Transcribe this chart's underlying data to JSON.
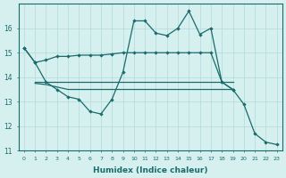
{
  "xlabel": "Humidex (Indice chaleur)",
  "bg_color": "#d6f0f0",
  "grid_color": "#b8dcdc",
  "line_color": "#1a6b6b",
  "xlim": [
    -0.5,
    23.5
  ],
  "ylim": [
    11,
    17
  ],
  "yticks": [
    11,
    12,
    13,
    14,
    15,
    16
  ],
  "xticks": [
    0,
    1,
    2,
    3,
    4,
    5,
    6,
    7,
    8,
    9,
    10,
    11,
    12,
    13,
    14,
    15,
    16,
    17,
    18,
    19,
    20,
    21,
    22,
    23
  ],
  "series": [
    {
      "x": [
        0,
        1,
        2,
        3,
        4,
        5,
        6,
        7,
        8,
        9,
        10,
        11,
        12,
        13,
        14,
        15,
        16,
        17,
        18,
        19,
        20,
        21,
        22,
        23
      ],
      "y": [
        15.2,
        14.6,
        13.8,
        13.5,
        13.2,
        13.1,
        12.6,
        12.5,
        13.1,
        14.2,
        16.3,
        16.3,
        15.8,
        15.7,
        16.0,
        16.7,
        15.75,
        16.0,
        13.8,
        13.5,
        12.9,
        11.7,
        11.35,
        11.25
      ],
      "markers": true
    },
    {
      "x": [
        1,
        2,
        3,
        4,
        5,
        6,
        7,
        8,
        9,
        10,
        11,
        12,
        13,
        14,
        15,
        16,
        17,
        18,
        19
      ],
      "y": [
        13.8,
        13.8,
        13.8,
        13.8,
        13.8,
        13.8,
        13.8,
        13.8,
        13.8,
        13.8,
        13.8,
        13.8,
        13.8,
        13.8,
        13.8,
        13.8,
        13.8,
        13.8,
        13.8
      ],
      "markers": false
    },
    {
      "x": [
        1,
        2,
        3,
        4,
        5,
        6,
        7,
        8,
        9,
        10,
        11,
        12,
        13,
        14,
        15,
        16,
        17,
        18,
        19
      ],
      "y": [
        13.75,
        13.7,
        13.6,
        13.5,
        13.5,
        13.5,
        13.5,
        13.5,
        13.5,
        13.5,
        13.5,
        13.5,
        13.5,
        13.5,
        13.5,
        13.5,
        13.5,
        13.5,
        13.5
      ],
      "markers": false
    },
    {
      "x": [
        0,
        1,
        2,
        3,
        4,
        5,
        6,
        7,
        8,
        9,
        10,
        11,
        12,
        13,
        14,
        15,
        16,
        17,
        18,
        19
      ],
      "y": [
        15.2,
        14.6,
        14.7,
        14.85,
        14.85,
        14.9,
        14.9,
        14.9,
        14.95,
        15.0,
        15.0,
        15.0,
        15.0,
        15.0,
        15.0,
        15.0,
        15.0,
        15.0,
        13.8,
        13.5
      ],
      "markers": true
    }
  ]
}
